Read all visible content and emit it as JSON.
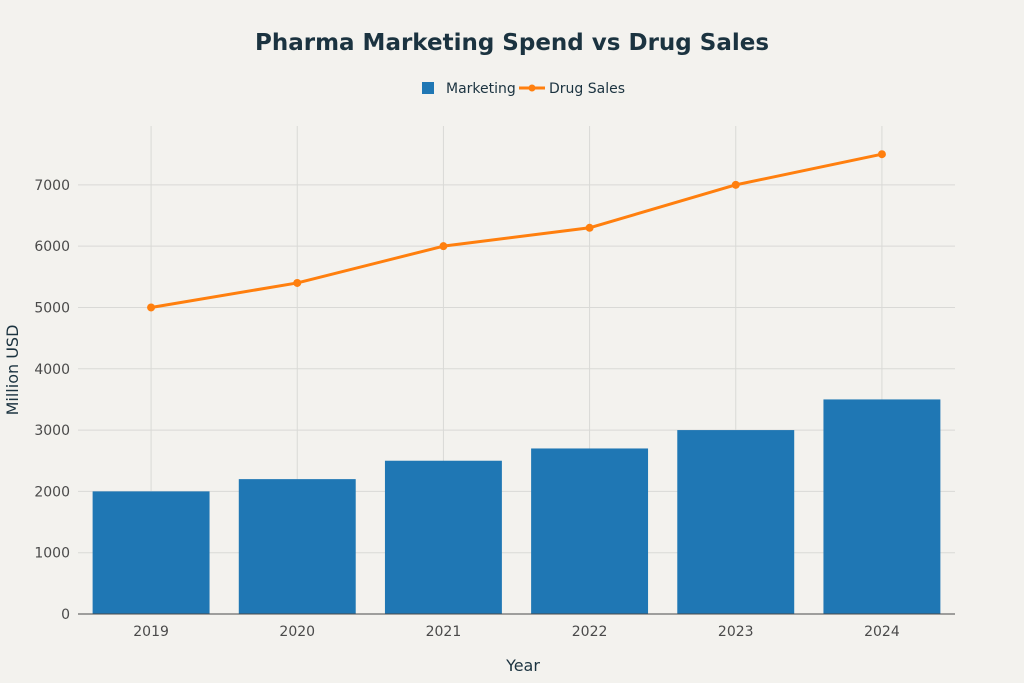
{
  "chart_data": {
    "type": "bar",
    "title": "Pharma Marketing Spend vs Drug Sales",
    "xlabel": "Year",
    "ylabel": "Million USD",
    "categories": [
      "2019",
      "2020",
      "2021",
      "2022",
      "2023",
      "2024"
    ],
    "series": [
      {
        "name": "Marketing",
        "type": "bar",
        "color": "#1f77b4",
        "values": [
          2000,
          2200,
          2500,
          2700,
          3000,
          3500
        ]
      },
      {
        "name": "Drug Sales",
        "type": "line",
        "color": "#ff7f0e",
        "values": [
          5000,
          5400,
          6000,
          6300,
          7000,
          7500
        ]
      }
    ],
    "ylim": [
      0,
      7960
    ],
    "yticks": [
      "0",
      "1000",
      "2000",
      "3000",
      "4000",
      "5000",
      "6000",
      "7000"
    ],
    "grid": true,
    "legend_position": "top-center"
  }
}
